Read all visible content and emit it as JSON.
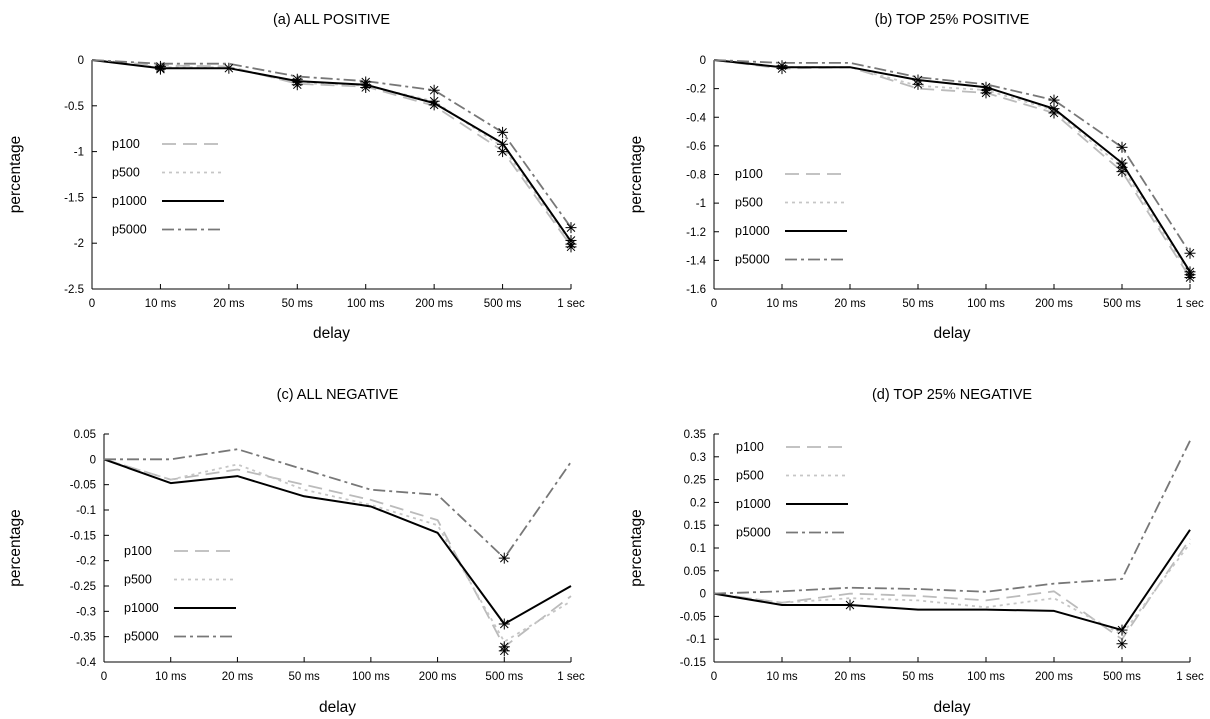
{
  "chart_data": [
    {
      "type": "line",
      "title": "(a) ALL POSITIVE",
      "xlabel": "delay",
      "ylabel": "percentage",
      "categories": [
        "0",
        "10 ms",
        "20 ms",
        "50 ms",
        "100 ms",
        "200 ms",
        "500 ms",
        "1 sec"
      ],
      "ylim": [
        -2.5,
        0
      ],
      "yticks": [
        0,
        -0.5,
        -1,
        -1.5,
        -2,
        -2.5
      ],
      "ytick_labels": [
        "0",
        "-0.5",
        "-1",
        "-1.5",
        "-2",
        "-2.5"
      ],
      "legend": "left",
      "series": [
        {
          "name": "p100",
          "values": [
            0,
            -0.06,
            -0.07,
            -0.26,
            -0.29,
            -0.5,
            -0.99,
            -2.03
          ]
        },
        {
          "name": "p500",
          "values": [
            0,
            -0.08,
            -0.08,
            -0.25,
            -0.28,
            -0.45,
            -0.95,
            -2.0
          ]
        },
        {
          "name": "p1000",
          "values": [
            0,
            -0.09,
            -0.09,
            -0.23,
            -0.27,
            -0.47,
            -0.91,
            -1.98
          ]
        },
        {
          "name": "p5000",
          "values": [
            0,
            -0.04,
            -0.04,
            -0.18,
            -0.23,
            -0.33,
            -0.79,
            -1.83
          ]
        }
      ],
      "markers": [
        [
          1,
          -0.07
        ],
        [
          1,
          -0.09
        ],
        [
          1,
          -0.1
        ],
        [
          2,
          -0.09
        ],
        [
          3,
          -0.21
        ],
        [
          3,
          -0.24
        ],
        [
          3,
          -0.27
        ],
        [
          4,
          -0.24
        ],
        [
          4,
          -0.27
        ],
        [
          4,
          -0.3
        ],
        [
          5,
          -0.33
        ],
        [
          5,
          -0.45
        ],
        [
          5,
          -0.49
        ],
        [
          6,
          -0.79
        ],
        [
          6,
          -0.92
        ],
        [
          6,
          -1.0
        ],
        [
          7,
          -1.83
        ],
        [
          7,
          -1.97
        ],
        [
          7,
          -2.01
        ],
        [
          7,
          -2.04
        ]
      ]
    },
    {
      "type": "line",
      "title": "(b) TOP 25% POSITIVE",
      "xlabel": "delay",
      "ylabel": "percentage",
      "categories": [
        "0",
        "10 ms",
        "20 ms",
        "50 ms",
        "100 ms",
        "200 ms",
        "500 ms",
        "1 sec"
      ],
      "ylim": [
        -1.6,
        0
      ],
      "yticks": [
        0,
        -0.2,
        -0.4,
        -0.6,
        -0.8,
        -1,
        -1.2,
        -1.4,
        -1.6
      ],
      "ytick_labels": [
        "0",
        "-0.2",
        "-0.4",
        "-0.6",
        "-0.8",
        "-1",
        "-1.2",
        "-1.4",
        "-1.6"
      ],
      "legend": "left",
      "series": [
        {
          "name": "p100",
          "values": [
            0,
            -0.06,
            -0.05,
            -0.2,
            -0.23,
            -0.37,
            -0.78,
            -1.52
          ]
        },
        {
          "name": "p500",
          "values": [
            0,
            -0.05,
            -0.05,
            -0.18,
            -0.21,
            -0.35,
            -0.75,
            -1.5
          ]
        },
        {
          "name": "p1000",
          "values": [
            0,
            -0.05,
            -0.05,
            -0.14,
            -0.19,
            -0.34,
            -0.72,
            -1.48
          ]
        },
        {
          "name": "p5000",
          "values": [
            0,
            -0.02,
            -0.02,
            -0.12,
            -0.17,
            -0.28,
            -0.61,
            -1.35
          ]
        }
      ],
      "markers": [
        [
          1,
          -0.04
        ],
        [
          1,
          -0.06
        ],
        [
          3,
          -0.14
        ],
        [
          3,
          -0.17
        ],
        [
          4,
          -0.19
        ],
        [
          4,
          -0.21
        ],
        [
          4,
          -0.23
        ],
        [
          5,
          -0.28
        ],
        [
          5,
          -0.34
        ],
        [
          5,
          -0.37
        ],
        [
          6,
          -0.61
        ],
        [
          6,
          -0.72
        ],
        [
          6,
          -0.75
        ],
        [
          6,
          -0.78
        ],
        [
          7,
          -1.35
        ],
        [
          7,
          -1.48
        ],
        [
          7,
          -1.5
        ],
        [
          7,
          -1.52
        ]
      ]
    },
    {
      "type": "line",
      "title": "(c) ALL NEGATIVE",
      "xlabel": "delay",
      "ylabel": "percentage",
      "categories": [
        "0",
        "10 ms",
        "20 ms",
        "50 ms",
        "100 ms",
        "200 ms",
        "500 ms",
        "1 sec"
      ],
      "ylim": [
        -0.4,
        0.05
      ],
      "yticks": [
        0.05,
        0,
        -0.05,
        -0.1,
        -0.15,
        -0.2,
        -0.25,
        -0.3,
        -0.35,
        -0.4
      ],
      "ytick_labels": [
        "0.05",
        "0",
        "-0.05",
        "-0.1",
        "-0.15",
        "-0.2",
        "-0.25",
        "-0.3",
        "-0.35",
        "-0.4"
      ],
      "legend": "bottom-left",
      "series": [
        {
          "name": "p100",
          "values": [
            0,
            -0.04,
            -0.02,
            -0.05,
            -0.08,
            -0.12,
            -0.37,
            -0.27
          ]
        },
        {
          "name": "p500",
          "values": [
            0,
            -0.04,
            -0.01,
            -0.06,
            -0.09,
            -0.13,
            -0.36,
            -0.28
          ]
        },
        {
          "name": "p1000",
          "values": [
            0,
            -0.047,
            -0.033,
            -0.073,
            -0.093,
            -0.145,
            -0.325,
            -0.25
          ]
        },
        {
          "name": "p5000",
          "values": [
            0,
            0,
            0.02,
            -0.02,
            -0.06,
            -0.07,
            -0.195,
            -0.005
          ]
        }
      ],
      "markers": [
        [
          6,
          -0.195
        ],
        [
          6,
          -0.325
        ],
        [
          6,
          -0.37
        ],
        [
          6,
          -0.378
        ]
      ]
    },
    {
      "type": "line",
      "title": "(d) TOP 25% NEGATIVE",
      "xlabel": "delay",
      "ylabel": "percentage",
      "categories": [
        "0",
        "10 ms",
        "20 ms",
        "50 ms",
        "100 ms",
        "200 ms",
        "500 ms",
        "1 sec"
      ],
      "ylim": [
        -0.15,
        0.35
      ],
      "yticks": [
        0.35,
        0.3,
        0.25,
        0.2,
        0.15,
        0.1,
        0.05,
        0,
        -0.05,
        -0.1,
        -0.15
      ],
      "ytick_labels": [
        "0.35",
        "0.3",
        "0.25",
        "0.2",
        "0.15",
        "0.1",
        "0.05",
        "0",
        "-0.05",
        "-0.1",
        "-0.15"
      ],
      "legend": "top-left",
      "series": [
        {
          "name": "p100",
          "values": [
            0,
            -0.02,
            0,
            -0.005,
            -0.015,
            0.005,
            -0.1,
            0.12
          ]
        },
        {
          "name": "p500",
          "values": [
            0,
            -0.02,
            -0.01,
            -0.015,
            -0.03,
            -0.01,
            -0.09,
            0.11
          ]
        },
        {
          "name": "p1000",
          "values": [
            0,
            -0.025,
            -0.025,
            -0.035,
            -0.035,
            -0.038,
            -0.08,
            0.14
          ]
        },
        {
          "name": "p5000",
          "values": [
            0,
            0.005,
            0.013,
            0.01,
            0.004,
            0.022,
            0.032,
            0.335
          ]
        }
      ],
      "markers": [
        [
          2,
          -0.025
        ],
        [
          6,
          -0.08
        ],
        [
          6,
          -0.11
        ]
      ]
    }
  ]
}
